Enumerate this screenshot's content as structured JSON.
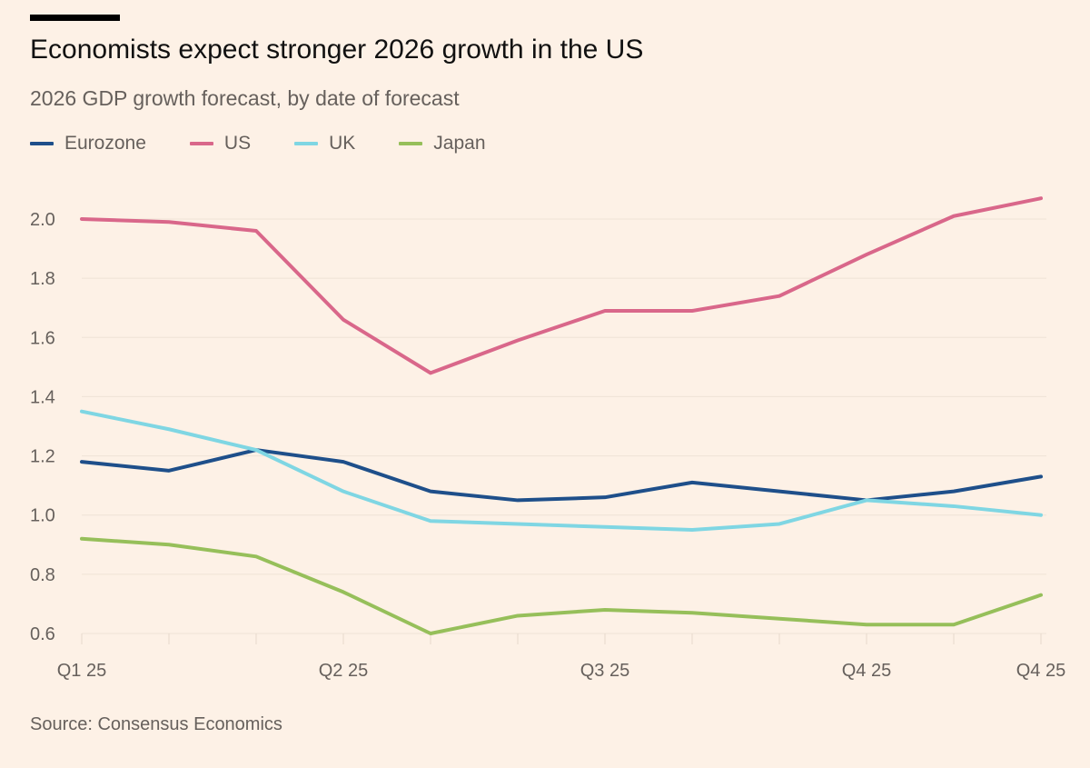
{
  "chart_data": {
    "type": "line",
    "title": "Economists expect stronger 2026 growth in the US",
    "subtitle": "2026 GDP growth forecast, by date of forecast",
    "source": "Source: Consensus Economics",
    "xlabel": "",
    "ylabel": "",
    "x_tick_labels": [
      {
        "index": 0,
        "label": "Q1 25"
      },
      {
        "index": 3,
        "label": "Q2 25"
      },
      {
        "index": 6,
        "label": "Q3 25"
      },
      {
        "index": 9,
        "label": "Q4 25"
      },
      {
        "index": 11,
        "label": "Q4 25"
      }
    ],
    "y_ticks": [
      "0.6",
      "0.8",
      "1.0",
      "1.2",
      "1.4",
      "1.6",
      "1.8",
      "2.0"
    ],
    "ylim": [
      0.6,
      2.0
    ],
    "grid": true,
    "legend": "top-left",
    "series": [
      {
        "name": "Eurozone",
        "color": "#1e4f8a",
        "values": [
          1.18,
          1.15,
          1.22,
          1.18,
          1.08,
          1.05,
          1.06,
          1.11,
          1.08,
          1.05,
          1.08,
          1.13
        ]
      },
      {
        "name": "US",
        "color": "#d9678a",
        "values": [
          2.0,
          1.99,
          1.96,
          1.66,
          1.48,
          1.59,
          1.69,
          1.69,
          1.74,
          1.88,
          2.01,
          2.07
        ]
      },
      {
        "name": "UK",
        "color": "#7fd6e3",
        "values": [
          1.35,
          1.29,
          1.22,
          1.08,
          0.98,
          0.97,
          0.96,
          0.95,
          0.97,
          1.05,
          1.03,
          1.0
        ]
      },
      {
        "name": "Japan",
        "color": "#96bf5a",
        "values": [
          0.92,
          0.9,
          0.86,
          0.74,
          0.6,
          0.66,
          0.68,
          0.67,
          0.65,
          0.63,
          0.63,
          0.73
        ]
      }
    ]
  }
}
